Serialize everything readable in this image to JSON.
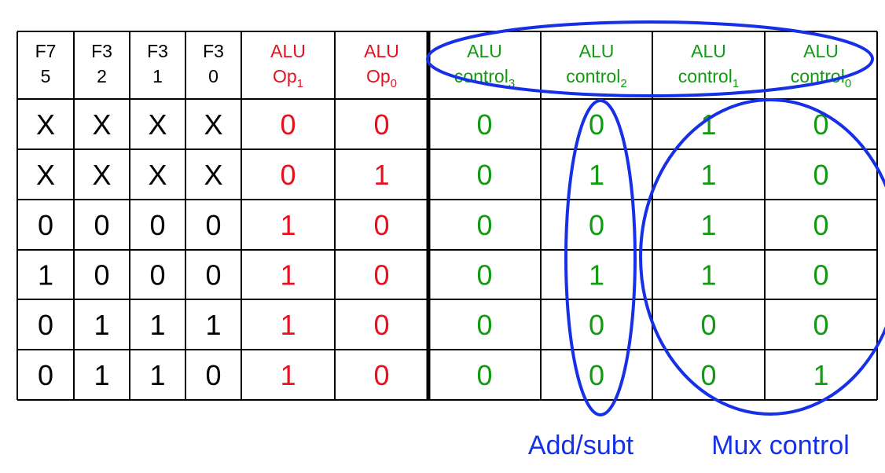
{
  "colors": {
    "black": "#000000",
    "red": "#e8101f",
    "green": "#119a12",
    "blue": "#1530e6"
  },
  "headers": [
    {
      "id": "f75",
      "line1": "F7",
      "line2": "5",
      "sub": "",
      "color": "black"
    },
    {
      "id": "f32",
      "line1": "F3",
      "line2": "2",
      "sub": "",
      "color": "black"
    },
    {
      "id": "f31",
      "line1": "F3",
      "line2": "1",
      "sub": "",
      "color": "black"
    },
    {
      "id": "f30",
      "line1": "F3",
      "line2": "0",
      "sub": "",
      "color": "black"
    },
    {
      "id": "aluop1",
      "line1": "ALU",
      "line2": "Op",
      "sub": "1",
      "color": "red"
    },
    {
      "id": "aluop0",
      "line1": "ALU",
      "line2": "Op",
      "sub": "0",
      "color": "red"
    },
    {
      "id": "aluctl3",
      "line1": "ALU",
      "line2": "control",
      "sub": "3",
      "color": "green"
    },
    {
      "id": "aluctl2",
      "line1": "ALU",
      "line2": "control",
      "sub": "2",
      "color": "green"
    },
    {
      "id": "aluctl1",
      "line1": "ALU",
      "line2": "control",
      "sub": "1",
      "color": "green"
    },
    {
      "id": "aluctl0",
      "line1": "ALU",
      "line2": "control",
      "sub": "0",
      "color": "green"
    }
  ],
  "rows": [
    [
      "X",
      "X",
      "X",
      "X",
      "0",
      "0",
      "0",
      "0",
      "1",
      "0"
    ],
    [
      "X",
      "X",
      "X",
      "X",
      "0",
      "1",
      "0",
      "1",
      "1",
      "0"
    ],
    [
      "0",
      "0",
      "0",
      "0",
      "1",
      "0",
      "0",
      "0",
      "1",
      "0"
    ],
    [
      "1",
      "0",
      "0",
      "0",
      "1",
      "0",
      "0",
      "1",
      "1",
      "0"
    ],
    [
      "0",
      "1",
      "1",
      "1",
      "1",
      "0",
      "0",
      "0",
      "0",
      "0"
    ],
    [
      "0",
      "1",
      "1",
      "0",
      "1",
      "0",
      "0",
      "0",
      "0",
      "1"
    ]
  ],
  "annotations": {
    "add_subt": "Add/subt",
    "mux_control": "Mux control"
  }
}
